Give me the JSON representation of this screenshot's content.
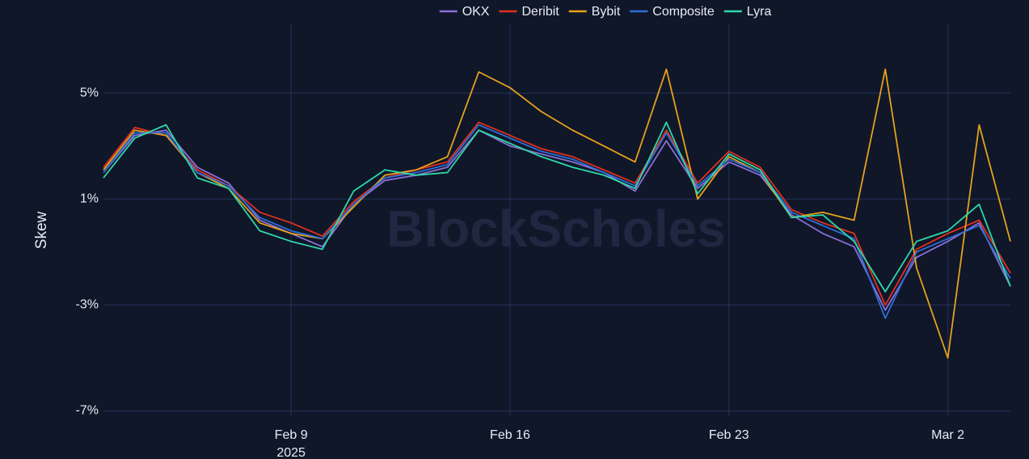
{
  "chart_data": {
    "type": "line",
    "y_label": "Skew",
    "watermark": "BlockScholes",
    "x": [
      "2025-02-03",
      "2025-02-04",
      "2025-02-05",
      "2025-02-06",
      "2025-02-07",
      "2025-02-08",
      "2025-02-09",
      "2025-02-10",
      "2025-02-11",
      "2025-02-12",
      "2025-02-13",
      "2025-02-14",
      "2025-02-15",
      "2025-02-16",
      "2025-02-17",
      "2025-02-18",
      "2025-02-19",
      "2025-02-20",
      "2025-02-21",
      "2025-02-22",
      "2025-02-23",
      "2025-02-24",
      "2025-02-25",
      "2025-02-26",
      "2025-02-27",
      "2025-02-28",
      "2025-03-01",
      "2025-03-02",
      "2025-03-03",
      "2025-03-04"
    ],
    "xlim": [
      "2025-02-03",
      "2025-03-04"
    ],
    "xticks": [
      {
        "value": "2025-02-09",
        "label": "Feb 9"
      },
      {
        "value": "2025-02-16",
        "label": "Feb 16"
      },
      {
        "value": "2025-02-23",
        "label": "Feb 23"
      },
      {
        "value": "2025-03-02",
        "label": "Mar 2"
      }
    ],
    "x_year_label": "2025",
    "ylim": [
      -7.2,
      7.6
    ],
    "yticks": [
      {
        "value": -7,
        "label": "-7%"
      },
      {
        "value": -3,
        "label": "-3%"
      },
      {
        "value": 1,
        "label": "1%"
      },
      {
        "value": 5,
        "label": "5%"
      }
    ],
    "grid": true,
    "legend": "top",
    "series": [
      {
        "name": "OKX",
        "color": "#8b6fd6",
        "values": [
          2.0,
          3.4,
          3.6,
          2.2,
          1.6,
          0.2,
          -0.3,
          -0.8,
          0.8,
          1.7,
          1.9,
          2.2,
          3.6,
          3.0,
          2.7,
          2.4,
          2.0,
          1.3,
          3.2,
          1.4,
          2.4,
          1.9,
          0.4,
          -0.3,
          -0.8,
          -3.2,
          -1.2,
          -0.6,
          0.1,
          -2.3
        ]
      },
      {
        "name": "Deribit",
        "color": "#e3301f",
        "values": [
          2.2,
          3.7,
          3.4,
          2.1,
          1.5,
          0.5,
          0.1,
          -0.4,
          0.9,
          1.8,
          2.1,
          2.4,
          3.9,
          3.4,
          2.9,
          2.6,
          2.1,
          1.6,
          3.6,
          1.6,
          2.8,
          2.2,
          0.6,
          0.1,
          -0.3,
          -3.0,
          -0.9,
          -0.3,
          0.2,
          -1.8
        ]
      },
      {
        "name": "Bybit",
        "color": "#e7a11c",
        "values": [
          2.1,
          3.6,
          3.4,
          2.0,
          1.4,
          0.1,
          -0.3,
          -0.5,
          0.7,
          1.9,
          2.1,
          2.6,
          5.8,
          5.2,
          4.3,
          3.6,
          3.0,
          2.4,
          5.9,
          1.0,
          2.6,
          2.0,
          0.3,
          0.5,
          0.2,
          5.9,
          -1.6,
          -5.0,
          3.8,
          -0.6
        ]
      },
      {
        "name": "Composite",
        "color": "#2f6fd8",
        "values": [
          2.0,
          3.5,
          3.5,
          2.0,
          1.5,
          0.3,
          -0.2,
          -0.5,
          0.8,
          1.8,
          2.0,
          2.3,
          3.8,
          3.3,
          2.8,
          2.5,
          2.0,
          1.5,
          3.5,
          1.5,
          2.5,
          2.0,
          0.5,
          0.0,
          -0.5,
          -3.5,
          -1.0,
          -0.5,
          0.0,
          -2.0
        ]
      },
      {
        "name": "Lyra",
        "color": "#2fd8a8",
        "values": [
          1.8,
          3.3,
          3.8,
          1.8,
          1.4,
          -0.2,
          -0.6,
          -0.9,
          1.3,
          2.1,
          1.9,
          2.0,
          3.6,
          3.1,
          2.6,
          2.2,
          1.9,
          1.4,
          3.9,
          1.2,
          2.7,
          2.1,
          0.3,
          0.4,
          -0.6,
          -2.5,
          -0.6,
          -0.2,
          0.8,
          -2.3
        ]
      }
    ]
  }
}
